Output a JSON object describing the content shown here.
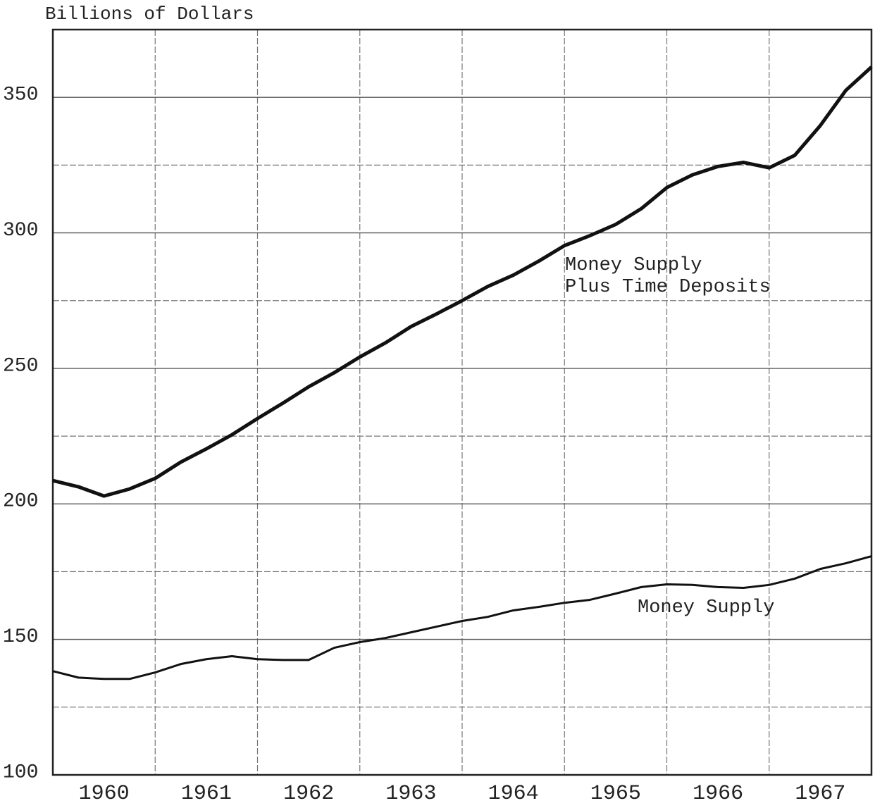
{
  "chart_data": {
    "type": "line",
    "ylabel": "Billions of Dollars",
    "xlim": [
      1960,
      1968
    ],
    "xticks": [
      1960,
      1961,
      1962,
      1963,
      1964,
      1965,
      1966,
      1967,
      1968
    ],
    "categories": [
      "1960",
      "1961",
      "1962",
      "1963",
      "1964",
      "1965",
      "1966",
      "1967"
    ],
    "ylim": [
      100,
      375
    ],
    "yticks": [
      100,
      150,
      200,
      250,
      300,
      350
    ],
    "yminor_ticks": [
      125,
      175,
      225,
      275,
      325
    ],
    "grid": true,
    "x": [
      1960,
      1960.25,
      1960.5,
      1960.75,
      1961,
      1961.25,
      1961.5,
      1961.75,
      1962,
      1962.25,
      1962.5,
      1962.75,
      1963,
      1963.25,
      1963.5,
      1963.75,
      1964,
      1964.25,
      1964.5,
      1964.75,
      1965,
      1965.25,
      1965.5,
      1965.75,
      1966,
      1966.25,
      1966.5,
      1966.75,
      1967,
      1967.25,
      1967.5,
      1967.75,
      1968
    ],
    "series": [
      {
        "name": "Money Supply\nPlus Time Deposits",
        "color": "#111111",
        "values": [
          208.6,
          206.3,
          202.9,
          205.5,
          209.4,
          215.4,
          220.3,
          225.5,
          231.5,
          237.2,
          243.2,
          248.4,
          254.2,
          259.4,
          265.4,
          270.1,
          275.0,
          280.2,
          284.4,
          289.6,
          295.3,
          299.0,
          303.1,
          308.9,
          316.7,
          321.4,
          324.5,
          326.0,
          324.0,
          328.6,
          339.6,
          352.6,
          361.2
        ]
      },
      {
        "name": "Money Supply",
        "color": "#111111",
        "values": [
          138.3,
          135.9,
          135.4,
          135.4,
          137.8,
          140.9,
          142.7,
          143.8,
          142.7,
          142.4,
          142.4,
          146.9,
          149.0,
          150.5,
          152.6,
          154.7,
          156.8,
          158.3,
          160.7,
          162.0,
          163.5,
          164.6,
          166.9,
          169.3,
          170.3,
          170.1,
          169.3,
          169.0,
          170.1,
          172.4,
          176.0,
          178.1,
          180.7
        ]
      }
    ]
  }
}
